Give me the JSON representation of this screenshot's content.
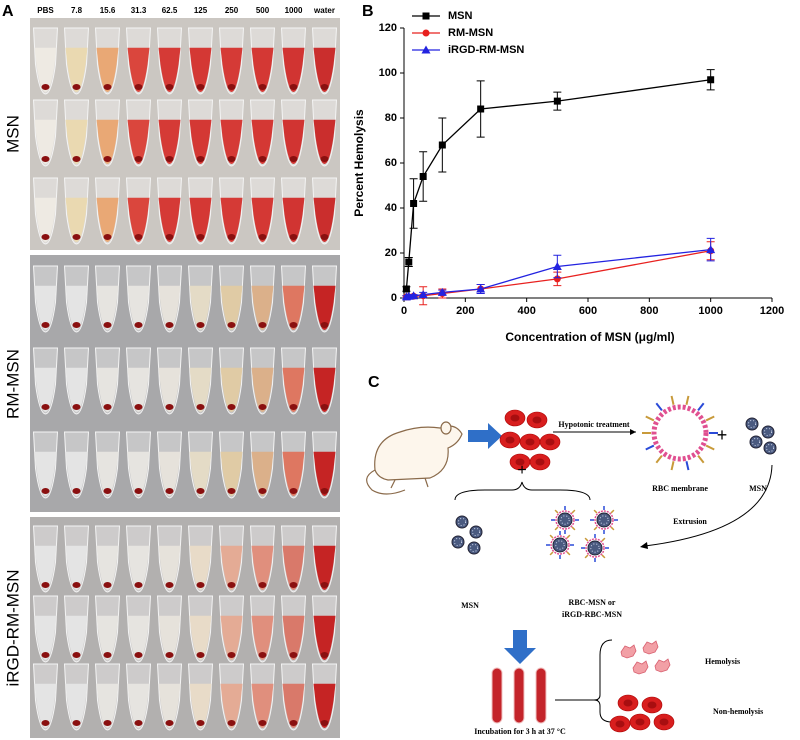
{
  "panel_a": {
    "label": "A",
    "columns": [
      "PBS",
      "7.8",
      "15.6",
      "31.3",
      "62.5",
      "125",
      "250",
      "500",
      "1000",
      "water"
    ],
    "rows": [
      "MSN",
      "RM-MSN",
      "iRGD-RM-MSN"
    ]
  },
  "chart_data": {
    "type": "line",
    "label": "B",
    "x_label": "Concentration of MSN (μg/ml)",
    "y_label": "Percent Hemolysis",
    "x": [
      7.8,
      15.6,
      31.3,
      62.5,
      125,
      250,
      500,
      1000
    ],
    "xlim": [
      0,
      1200
    ],
    "xticks": [
      0,
      200,
      400,
      600,
      800,
      1000,
      1200
    ],
    "ylim": [
      0,
      120
    ],
    "yticks": [
      0,
      20,
      40,
      60,
      80,
      100,
      120
    ],
    "legend": "upper left",
    "series": [
      {
        "name": "MSN",
        "color": "#000000",
        "marker": "square",
        "values": [
          4,
          16,
          42,
          54,
          68,
          84,
          87.5,
          97
        ],
        "errors": [
          1,
          2,
          11,
          11,
          12,
          12.5,
          4,
          4.5
        ]
      },
      {
        "name": "RM-MSN",
        "color": "#e8211f",
        "marker": "circle",
        "values": [
          0.5,
          0.5,
          0.8,
          1,
          2,
          4,
          8.5,
          21
        ],
        "errors": [
          0.5,
          0.5,
          0.5,
          4,
          2,
          2,
          3,
          4
        ]
      },
      {
        "name": "iRGD-RM-MSN",
        "color": "#2323e0",
        "marker": "triangle",
        "values": [
          0.5,
          0.8,
          1,
          1.5,
          2.5,
          4,
          14,
          21.5
        ],
        "errors": [
          0.5,
          0.5,
          0.5,
          1,
          1,
          2,
          5,
          5
        ]
      }
    ]
  },
  "diagram": {
    "label": "C",
    "hypotonic": "Hypotonic treatment",
    "membrane": "RBC membrane",
    "msn_top": "MSN",
    "plus_top": "+",
    "plus_left": "+",
    "extrusion": "Extrusion",
    "msn_bottom": "MSN",
    "coated": [
      "RBC-MSN or",
      "iRGD-RBC-MSN"
    ],
    "incubation": "Incubation for 3 h at 37 °C",
    "hemolysis": "Hemolysis",
    "non_hemolysis": "Non-hemolysis"
  }
}
